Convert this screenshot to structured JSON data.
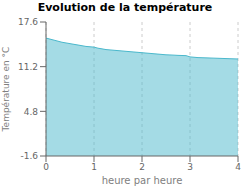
{
  "chart_data": {
    "type": "area",
    "title": "Evolution de la température",
    "xlabel": "heure par heure",
    "ylabel": "Température en °C",
    "color": "#4ab8cc",
    "grid": "x",
    "xlim": [
      0,
      4
    ],
    "ylim": [
      -1.6,
      17.6
    ],
    "xticks": [
      0,
      1,
      2,
      3,
      4
    ],
    "yticks": [
      -1.6,
      4.8,
      11.2,
      17.6
    ],
    "x": [
      0.0,
      0.083,
      0.167,
      0.25,
      0.333,
      0.417,
      0.5,
      0.583,
      0.667,
      0.75,
      0.833,
      0.917,
      1.0,
      1.083,
      1.167,
      1.25,
      1.333,
      1.417,
      1.5,
      1.583,
      1.667,
      1.75,
      1.833,
      1.917,
      2.0,
      2.083,
      2.167,
      2.25,
      2.333,
      2.417,
      2.5,
      2.583,
      2.667,
      2.75,
      2.833,
      2.917,
      3.0,
      3.083,
      3.167,
      3.25,
      3.333,
      3.417,
      3.5,
      3.583,
      3.667,
      3.75,
      3.833,
      3.917,
      4.0
    ],
    "values": [
      15.3,
      15.15,
      15.0,
      14.85,
      14.7,
      14.6,
      14.5,
      14.4,
      14.3,
      14.2,
      14.1,
      14.05,
      14.0,
      13.85,
      13.75,
      13.65,
      13.6,
      13.55,
      13.5,
      13.45,
      13.4,
      13.35,
      13.3,
      13.25,
      13.2,
      13.15,
      13.1,
      13.05,
      13.0,
      12.95,
      12.9,
      12.88,
      12.85,
      12.82,
      12.8,
      12.78,
      12.6,
      12.55,
      12.5,
      12.48,
      12.46,
      12.44,
      12.42,
      12.4,
      12.38,
      12.36,
      12.34,
      12.32,
      12.3
    ]
  }
}
